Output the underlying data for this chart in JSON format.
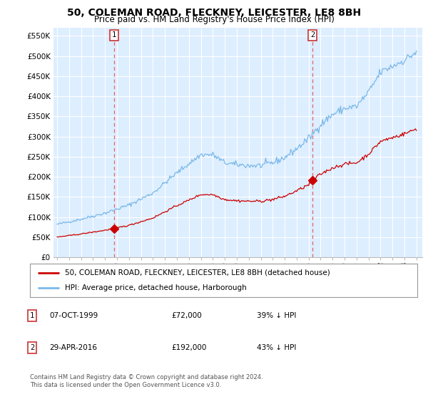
{
  "title": "50, COLEMAN ROAD, FLECKNEY, LEICESTER, LE8 8BH",
  "subtitle": "Price paid vs. HM Land Registry's House Price Index (HPI)",
  "title_fontsize": 10,
  "subtitle_fontsize": 8.5,
  "ylabel_ticks": [
    "£0",
    "£50K",
    "£100K",
    "£150K",
    "£200K",
    "£250K",
    "£300K",
    "£350K",
    "£400K",
    "£450K",
    "£500K",
    "£550K"
  ],
  "ytick_values": [
    0,
    50000,
    100000,
    150000,
    200000,
    250000,
    300000,
    350000,
    400000,
    450000,
    500000,
    550000
  ],
  "ylim": [
    0,
    570000
  ],
  "background_color": "#ffffff",
  "chart_bg_color": "#ddeeff",
  "grid_color": "#ffffff",
  "sale1_date_num": 1999.77,
  "sale1_price": 72000,
  "sale2_date_num": 2016.33,
  "sale2_price": 192000,
  "legend_label_red": "50, COLEMAN ROAD, FLECKNEY, LEICESTER, LE8 8BH (detached house)",
  "legend_label_blue": "HPI: Average price, detached house, Harborough",
  "footer": "Contains HM Land Registry data © Crown copyright and database right 2024.\nThis data is licensed under the Open Government Licence v3.0.",
  "table_row1": [
    "1",
    "07-OCT-1999",
    "£72,000",
    "39% ↓ HPI"
  ],
  "table_row2": [
    "2",
    "29-APR-2016",
    "£192,000",
    "43% ↓ HPI"
  ],
  "hpi_color": "#7ab8e8",
  "sale_color": "#cc0000",
  "vline_color": "#dd6666",
  "xlim_min": 1994.7,
  "xlim_max": 2025.5
}
